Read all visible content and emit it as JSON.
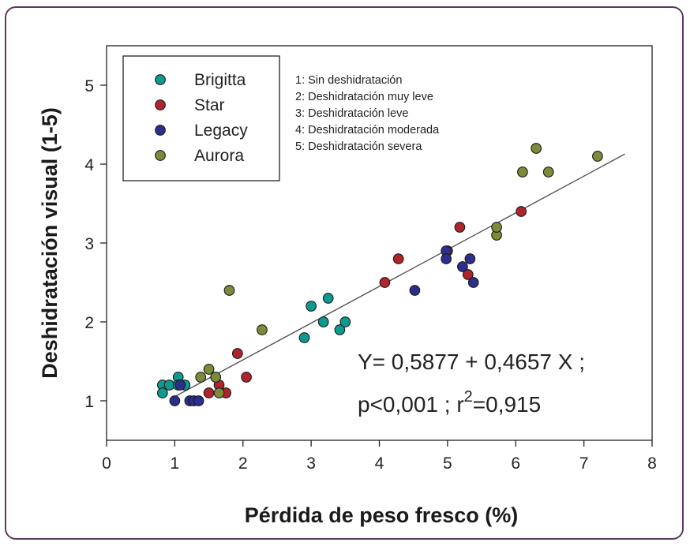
{
  "chart_data": {
    "type": "scatter",
    "xlabel": "Pérdida de peso fresco (%)",
    "ylabel": "Deshidratación visual (1-5)",
    "xlim": [
      0,
      8
    ],
    "ylim": [
      0.5,
      5.5
    ],
    "x_ticks": [
      0,
      1,
      2,
      3,
      4,
      5,
      6,
      7,
      8
    ],
    "y_ticks": [
      1,
      2,
      3,
      4,
      5
    ],
    "grid": false,
    "legend_position": "top-left",
    "series": [
      {
        "name": "Brigitta",
        "color": "#0e9a8f",
        "points": [
          [
            0.82,
            1.2
          ],
          [
            0.82,
            1.1
          ],
          [
            0.92,
            1.2
          ],
          [
            1.05,
            1.3
          ],
          [
            1.05,
            1.2
          ],
          [
            1.15,
            1.2
          ],
          [
            2.9,
            1.8
          ],
          [
            3.0,
            2.2
          ],
          [
            3.18,
            2.0
          ],
          [
            3.25,
            2.3
          ],
          [
            3.42,
            1.9
          ],
          [
            3.5,
            2.0
          ]
        ]
      },
      {
        "name": "Star",
        "color": "#b0242c",
        "points": [
          [
            1.5,
            1.1
          ],
          [
            1.65,
            1.2
          ],
          [
            1.75,
            1.1
          ],
          [
            1.92,
            1.6
          ],
          [
            2.05,
            1.3
          ],
          [
            4.08,
            2.5
          ],
          [
            4.28,
            2.8
          ],
          [
            5.0,
            2.9
          ],
          [
            5.18,
            3.2
          ],
          [
            5.3,
            2.6
          ],
          [
            6.08,
            3.4
          ]
        ]
      },
      {
        "name": "Legacy",
        "color": "#2c2e8c",
        "points": [
          [
            1.0,
            1.0
          ],
          [
            1.08,
            1.2
          ],
          [
            1.22,
            1.0
          ],
          [
            1.28,
            1.0
          ],
          [
            1.35,
            1.0
          ],
          [
            4.52,
            2.4
          ],
          [
            4.98,
            2.9
          ],
          [
            4.98,
            2.8
          ],
          [
            5.22,
            2.7
          ],
          [
            5.33,
            2.8
          ],
          [
            5.38,
            2.5
          ]
        ]
      },
      {
        "name": "Aurora",
        "color": "#7d8a3a",
        "points": [
          [
            1.38,
            1.3
          ],
          [
            1.5,
            1.4
          ],
          [
            1.6,
            1.3
          ],
          [
            1.65,
            1.1
          ],
          [
            1.8,
            2.4
          ],
          [
            2.28,
            1.9
          ],
          [
            5.72,
            3.1
          ],
          [
            5.72,
            3.2
          ],
          [
            6.1,
            3.9
          ],
          [
            6.3,
            4.2
          ],
          [
            6.48,
            3.9
          ],
          [
            7.2,
            4.1
          ]
        ]
      }
    ],
    "regression_line": {
      "x": [
        1.0,
        7.6
      ],
      "intercept": 0.5877,
      "slope": 0.4657
    },
    "legend_notes": [
      "1: Sin deshidratación",
      "2: Deshidratación muy leve",
      "3: Deshidratación leve",
      "4: Deshidratación moderada",
      "5: Deshidratación severa"
    ],
    "equation_line1": "Y= 0,5877 + 0,4657 X ;",
    "equation_line2_prefix": "p<0,001 ; r",
    "equation_line2_sup": "2",
    "equation_line2_suffix": "=0,915"
  }
}
